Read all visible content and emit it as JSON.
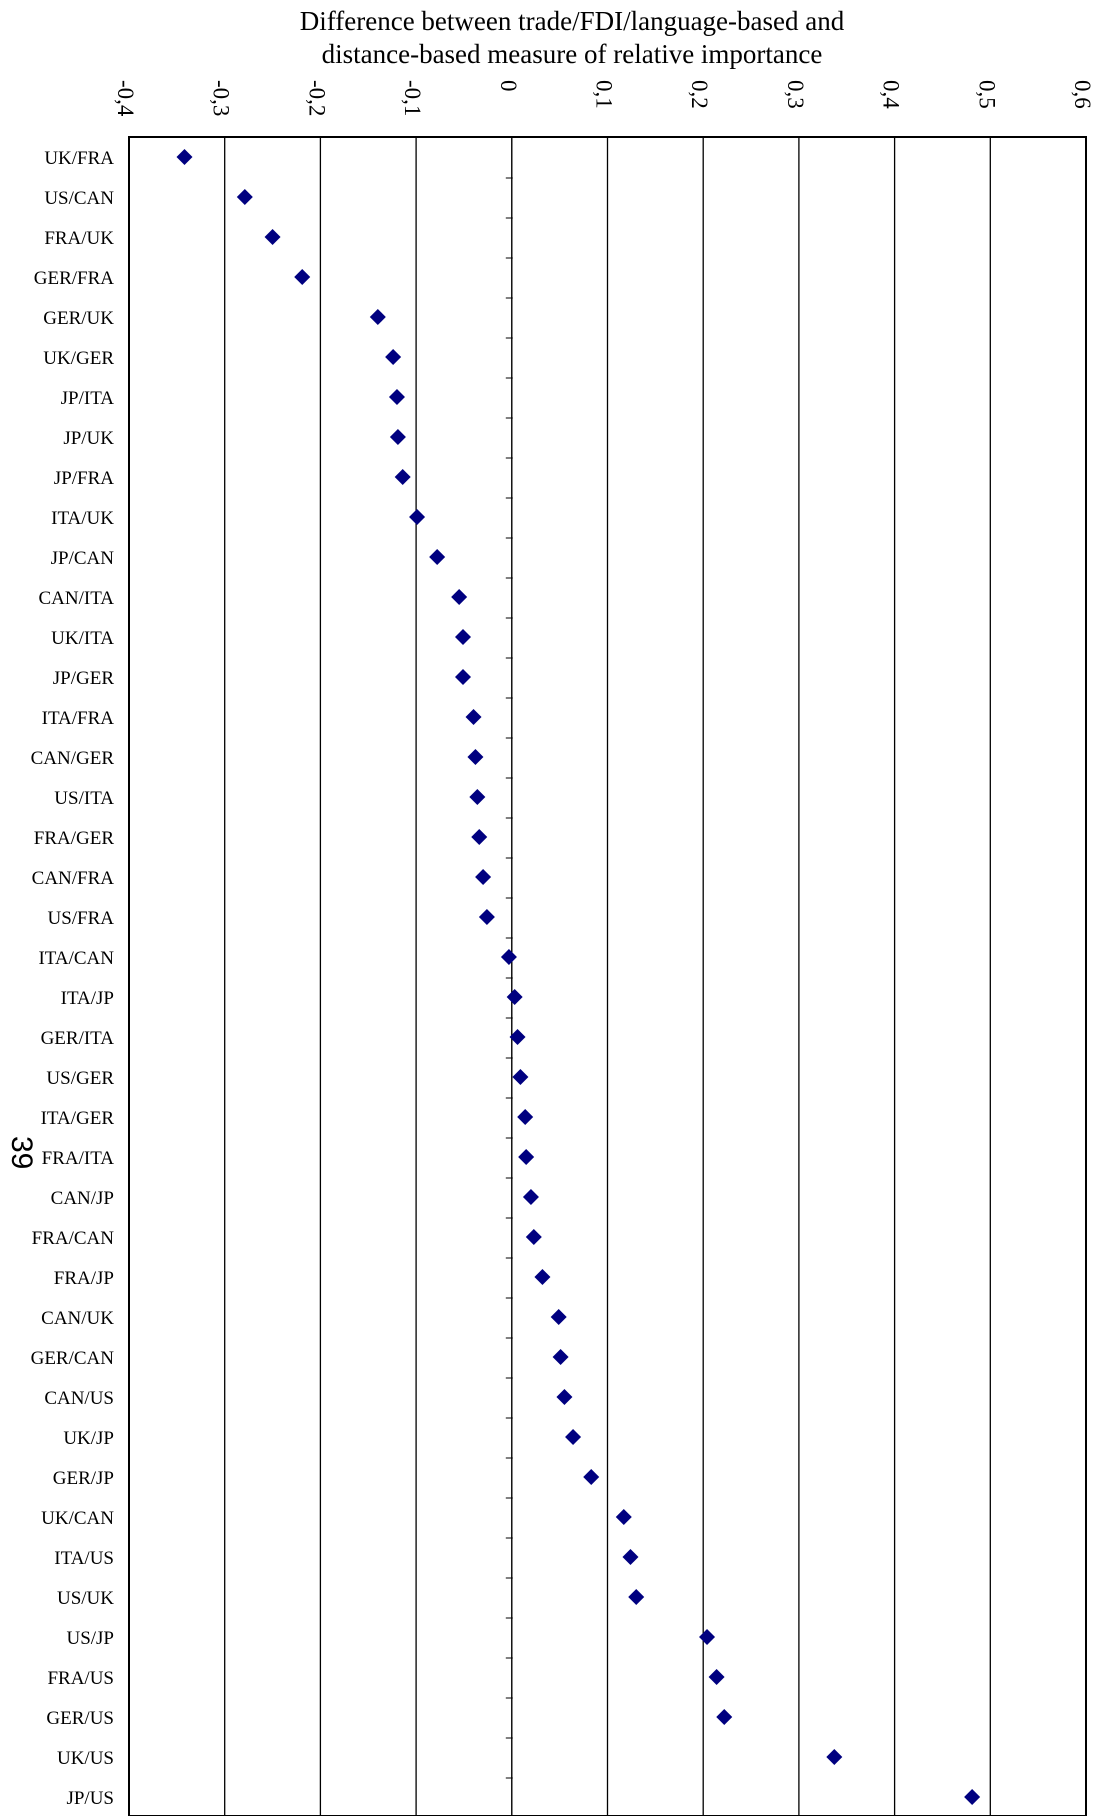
{
  "page": {
    "page_number": "39"
  },
  "colors": {
    "marker": "#000080",
    "gridline": "#000000",
    "axis": "#000000"
  },
  "chart_data": {
    "type": "scatter",
    "title": [
      "Difference between trade/FDI/language-based and",
      "distance-based measure of relative importance"
    ],
    "xlim": [
      -0.4,
      0.6
    ],
    "ticks": [
      -0.4,
      -0.3,
      -0.2,
      -0.1,
      0,
      0.1,
      0.2,
      0.3,
      0.4,
      0.5,
      0.6
    ],
    "tick_labels": [
      "-0,4",
      "-0,3",
      "-0,2",
      "-0,1",
      "0",
      "0,1",
      "0,2",
      "0,3",
      "0,4",
      "0,5",
      "0,6"
    ],
    "grid": true,
    "marker": "diamond",
    "categories": [
      "UK/FRA",
      "US/CAN",
      "FRA/UK",
      "GER/FRA",
      "GER/UK",
      "UK/GER",
      "JP/ITA",
      "JP/UK",
      "JP/FRA",
      "ITA/UK",
      "JP/CAN",
      "CAN/ITA",
      "UK/ITA",
      "JP/GER",
      "ITA/FRA",
      "CAN/GER",
      "US/ITA",
      "FRA/GER",
      "CAN/FRA",
      "US/FRA",
      "ITA/CAN",
      "ITA/JP",
      "GER/ITA",
      "US/GER",
      "ITA/GER",
      "FRA/ITA",
      "CAN/JP",
      "FRA/CAN",
      "FRA/JP",
      "CAN/UK",
      "GER/CAN",
      "CAN/US",
      "UK/JP",
      "GER/JP",
      "UK/CAN",
      "ITA/US",
      "US/UK",
      "US/JP",
      "FRA/US",
      "GER/US",
      "UK/US",
      "JP/US"
    ],
    "values": [
      -0.342,
      -0.279,
      -0.25,
      -0.219,
      -0.14,
      -0.124,
      -0.12,
      -0.119,
      -0.114,
      -0.099,
      -0.078,
      -0.055,
      -0.051,
      -0.051,
      -0.04,
      -0.038,
      -0.036,
      -0.034,
      -0.03,
      -0.026,
      -0.003,
      0.003,
      0.006,
      0.009,
      0.014,
      0.015,
      0.02,
      0.023,
      0.032,
      0.049,
      0.051,
      0.055,
      0.064,
      0.083,
      0.117,
      0.124,
      0.13,
      0.204,
      0.214,
      0.222,
      0.337,
      0.481
    ]
  }
}
